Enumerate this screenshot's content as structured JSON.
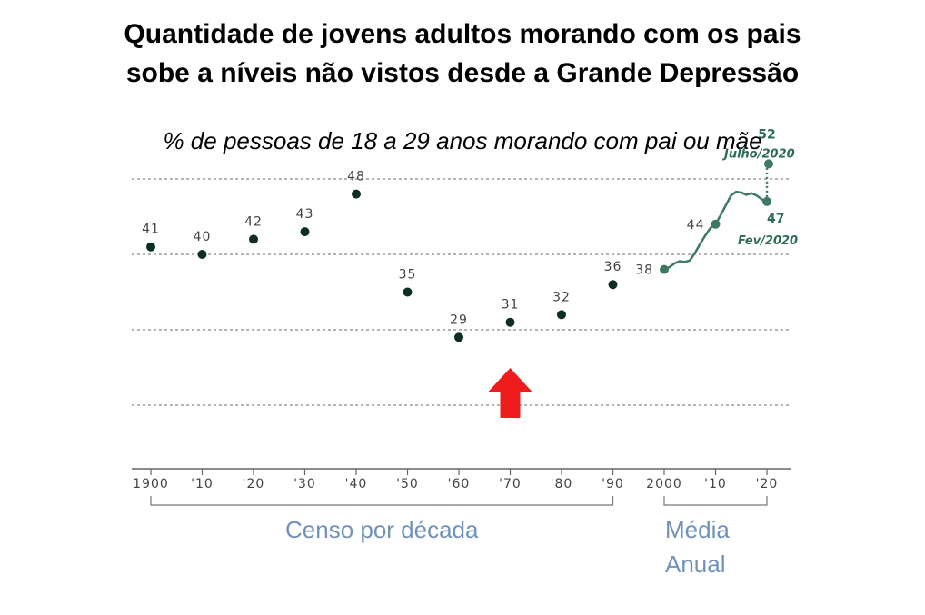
{
  "header": {
    "title_line1": "Quantidade de jovens adultos morando com os pais",
    "title_line2": "sobe a níveis não vistos desde a Grande Depressão",
    "subtitle": "% de pessoas de 18 a 29 anos morando com pai ou mãe"
  },
  "chart_data": {
    "type": "scatter",
    "title": "Quantidade de jovens adultos morando com os pais sobe a níveis não vistos desde a Grande Depressão",
    "subtitle": "% de pessoas de 18 a 29 anos morando com pai ou mãe",
    "x_tick_labels": [
      "1900",
      "'10",
      "'20",
      "'30",
      "'40",
      "'50",
      "'60",
      "'70",
      "'80",
      "'90",
      "2000",
      "'10",
      "'20"
    ],
    "xlim": [
      1900,
      2020
    ],
    "ylim": [
      20,
      55
    ],
    "gridlines": [
      20,
      30,
      40,
      50
    ],
    "census": {
      "x": [
        1900,
        1910,
        1920,
        1930,
        1940,
        1950,
        1960,
        1970,
        1980,
        1990
      ],
      "y": [
        41,
        40,
        42,
        43,
        48,
        35,
        29,
        31,
        32,
        36
      ]
    },
    "annual": {
      "x": [
        2000,
        2001,
        2002,
        2003,
        2004,
        2005,
        2006,
        2007,
        2008,
        2009,
        2010,
        2011,
        2012,
        2013,
        2014,
        2015,
        2016,
        2017,
        2018,
        2019,
        2020
      ],
      "y": [
        38,
        38.3,
        38.8,
        39.1,
        39.0,
        39.2,
        40.2,
        41.4,
        42.5,
        43.5,
        44,
        45.2,
        46.5,
        47.8,
        48.3,
        48.2,
        47.9,
        48.1,
        47.8,
        47.3,
        47
      ],
      "labeled_points": [
        {
          "x": 2000,
          "y": 38,
          "label": "38"
        },
        {
          "x": 2010,
          "y": 44,
          "label": "44"
        }
      ]
    },
    "feb2020": {
      "x": 2020,
      "y": 47,
      "label": "47",
      "note": "Fev/2020"
    },
    "jul2020": {
      "x": 2020,
      "y": 52,
      "label": "52",
      "note": "Julho/2020"
    },
    "groups": [
      {
        "label": "Censo por década",
        "from": 1900,
        "to": 1990
      },
      {
        "label_line1": "Média",
        "label_line2": "Anual",
        "from": 2000,
        "to": 2020
      }
    ],
    "colors": {
      "census": "#0d2e25",
      "annual": "#3e7a62",
      "grid": "#888888",
      "arrow": "#ee1c1c",
      "group_label": "#7092b8"
    }
  }
}
